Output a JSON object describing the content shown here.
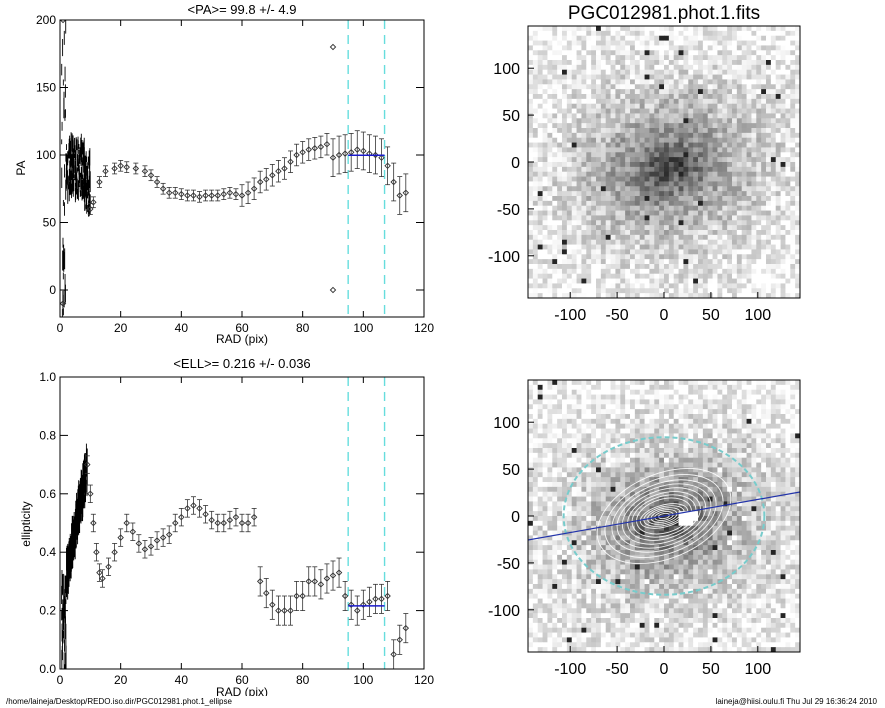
{
  "pa_panel": {
    "title": "<PA>=  99.8 +/-   4.9",
    "xlabel": "RAD (pix)",
    "ylabel": "PA",
    "xlim": [
      0,
      120
    ],
    "ylim": [
      -20,
      200
    ],
    "xticks": [
      0,
      20,
      40,
      60,
      80,
      100,
      120
    ],
    "yticks": [
      0,
      50,
      100,
      150,
      200
    ],
    "mean": 99.8,
    "err": 4.9
  },
  "ell_panel": {
    "title": "<ELL>= 0.216 +/-  0.036",
    "xlabel": "RAD (pix)",
    "ylabel": "ellipticity",
    "xlim": [
      0,
      120
    ],
    "ylim": [
      0.0,
      1.0
    ],
    "xticks": [
      0,
      20,
      40,
      60,
      80,
      100,
      120
    ],
    "yticks": [
      "0.0",
      "0.2",
      "0.4",
      "0.6",
      "0.8",
      "1.0"
    ],
    "mean": 0.216,
    "err": 0.036
  },
  "image_panel": {
    "title": "PGC012981.phot.1.fits",
    "ticks": [
      "-100",
      "-50",
      "0",
      "50",
      "100"
    ],
    "ytick_labels": [
      "100",
      "50",
      "0",
      "-50",
      "-100"
    ],
    "range": [
      -145,
      145
    ]
  },
  "colors": {
    "data_points": "#333333",
    "fit_line": "#1a1acc",
    "fit_window": "#66dddd",
    "contours": "#ffffff",
    "outer_ellipse": "#77cccc",
    "major_axis": "#2233aa"
  },
  "fit_window": [
    95,
    107
  ],
  "footer": {
    "path": "/home/laineja/Desktop/REDO.iso.dir/PGC012981.phot.1_ellipse",
    "stamp": "laineja@hiisi.oulu.fi  Thu Jul 29 16:36:24 2010"
  },
  "chart_data": [
    {
      "type": "scatter",
      "title": "<PA>=  99.8 +/-   4.9",
      "xlabel": "RAD (pix)",
      "ylabel": "PA",
      "xlim": [
        0,
        120
      ],
      "ylim": [
        -20,
        200
      ],
      "series": [
        {
          "x": [
            10,
            11,
            13,
            15,
            18,
            20,
            22,
            25,
            28,
            30,
            32,
            34,
            36,
            38,
            40,
            42,
            44,
            46,
            48,
            50,
            52,
            54,
            56,
            58,
            60,
            62,
            64,
            66,
            68,
            70,
            72,
            74,
            76,
            78,
            80,
            82,
            84,
            86,
            88,
            90,
            92,
            94,
            96,
            98,
            100,
            102,
            104,
            106,
            108,
            110,
            112,
            114
          ],
          "y": [
            60,
            65,
            80,
            88,
            90,
            92,
            91,
            90,
            88,
            85,
            80,
            75,
            72,
            72,
            71,
            70,
            70,
            69,
            70,
            70,
            70,
            71,
            72,
            71,
            70,
            72,
            75,
            80,
            82,
            85,
            88,
            90,
            95,
            100,
            102,
            104,
            105,
            106,
            108,
            98,
            100,
            101,
            102,
            104,
            103,
            101,
            100,
            98,
            92,
            80,
            70,
            72
          ]
        }
      ]
    },
    {
      "type": "scatter",
      "title": "<ELL>= 0.216 +/-  0.036",
      "xlabel": "RAD (pix)",
      "ylabel": "ellipticity",
      "xlim": [
        0,
        120
      ],
      "ylim": [
        0.0,
        1.0
      ],
      "series": [
        {
          "x": [
            9,
            10,
            11,
            12,
            13,
            14,
            16,
            18,
            20,
            22,
            24,
            26,
            28,
            30,
            32,
            34,
            36,
            38,
            40,
            42,
            44,
            46,
            48,
            50,
            52,
            54,
            56,
            58,
            60,
            62,
            64,
            66,
            68,
            70,
            72,
            74,
            76,
            78,
            80,
            82,
            84,
            86,
            88,
            90,
            92,
            94,
            96,
            98,
            100,
            102,
            104,
            106,
            108,
            110,
            112,
            114
          ],
          "y": [
            0.7,
            0.6,
            0.5,
            0.4,
            0.33,
            0.31,
            0.35,
            0.4,
            0.45,
            0.5,
            0.47,
            0.43,
            0.41,
            0.42,
            0.44,
            0.45,
            0.46,
            0.5,
            0.52,
            0.55,
            0.56,
            0.55,
            0.53,
            0.51,
            0.5,
            0.5,
            0.51,
            0.52,
            0.5,
            0.5,
            0.52,
            0.3,
            0.26,
            0.22,
            0.2,
            0.2,
            0.2,
            0.25,
            0.25,
            0.3,
            0.3,
            0.29,
            0.31,
            0.32,
            0.33,
            0.25,
            0.22,
            0.2,
            0.22,
            0.23,
            0.24,
            0.24,
            0.25,
            0.05,
            0.1,
            0.14
          ]
        }
      ]
    }
  ]
}
